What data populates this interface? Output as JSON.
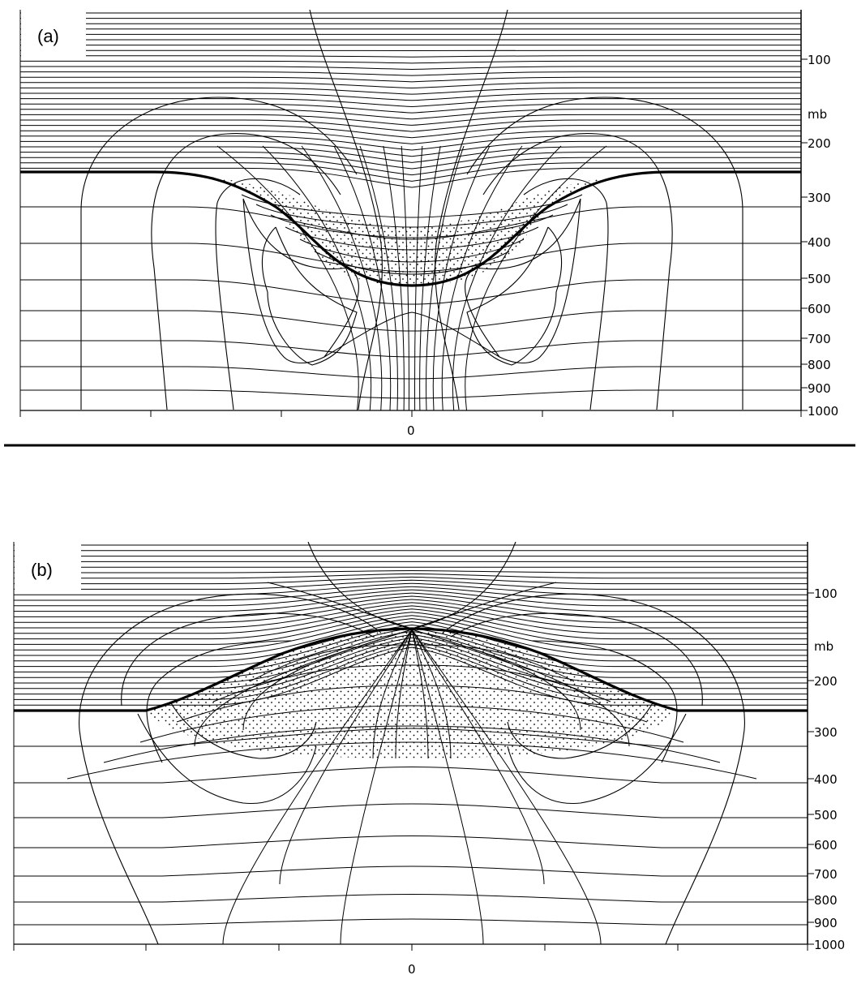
{
  "panels": [
    {
      "id": "a",
      "label": "(a)",
      "unit": "mb",
      "pressure_ticks": [
        "100",
        "200",
        "300",
        "400",
        "500",
        "600",
        "700",
        "800",
        "900",
        "1000"
      ],
      "x_center_label": "0",
      "tropopause_shape": "trough",
      "tropopause_undisturbed_mb": 255,
      "tropopause_extreme_mb": 520,
      "shaded_region": "stippled anomaly below undisturbed tropopause"
    },
    {
      "id": "b",
      "label": "(b)",
      "unit": "mb",
      "pressure_ticks": [
        "100",
        "200",
        "300",
        "400",
        "500",
        "600",
        "700",
        "800",
        "900",
        "1000"
      ],
      "x_center_label": "0",
      "tropopause_shape": "dome",
      "tropopause_undisturbed_mb": 255,
      "tropopause_extreme_mb": 155,
      "shaded_region": "stippled anomaly between tropopause and 320 mb"
    }
  ],
  "colors": {
    "ink": "#000000",
    "paper": "#ffffff"
  }
}
